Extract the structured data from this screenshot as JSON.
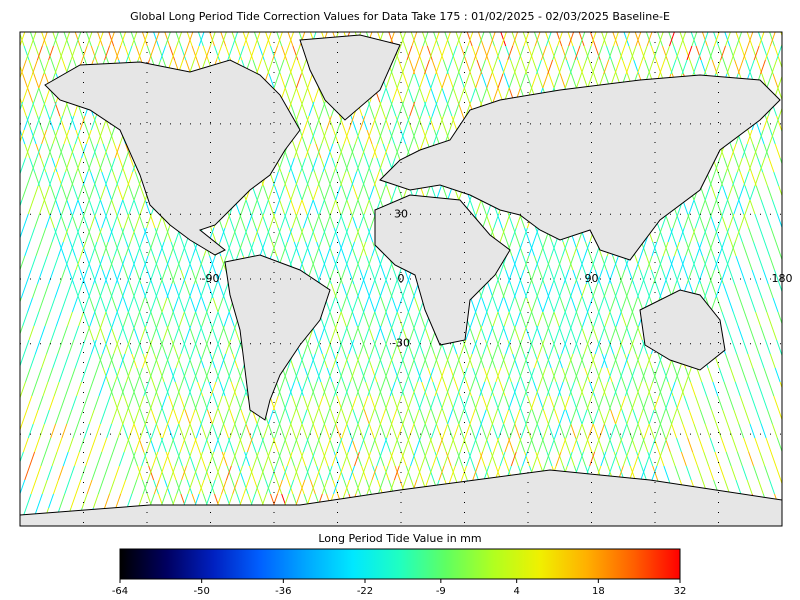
{
  "title": "Global Long Period Tide Correction Values for Data Take 175 : 01/02/2025 - 02/03/2025 Baseline-E",
  "map": {
    "projection": "mercator",
    "xlim": [
      -180,
      180
    ],
    "ylim": [
      -76,
      76
    ],
    "grid_lon": [
      -150,
      -120,
      -90,
      -60,
      -30,
      0,
      30,
      60,
      90,
      120,
      150
    ],
    "grid_lat": [
      -60,
      -30,
      0,
      30,
      60
    ],
    "lon_labels": [
      -90,
      0,
      90,
      180
    ],
    "lat_labels": [
      30,
      -30
    ]
  },
  "colorbar": {
    "label": "Long Period Tide Value in mm",
    "lim": [
      -64,
      32
    ],
    "ticks": [
      -64,
      -50,
      -36,
      -22,
      -9,
      4,
      18,
      32
    ],
    "colors": [
      "#000000",
      "#000060",
      "#0020c0",
      "#0060ff",
      "#00a8ff",
      "#00e8ff",
      "#20ffc0",
      "#60ff60",
      "#b0ff20",
      "#f0f000",
      "#ffb000",
      "#ff6000",
      "#ff0000"
    ]
  }
}
